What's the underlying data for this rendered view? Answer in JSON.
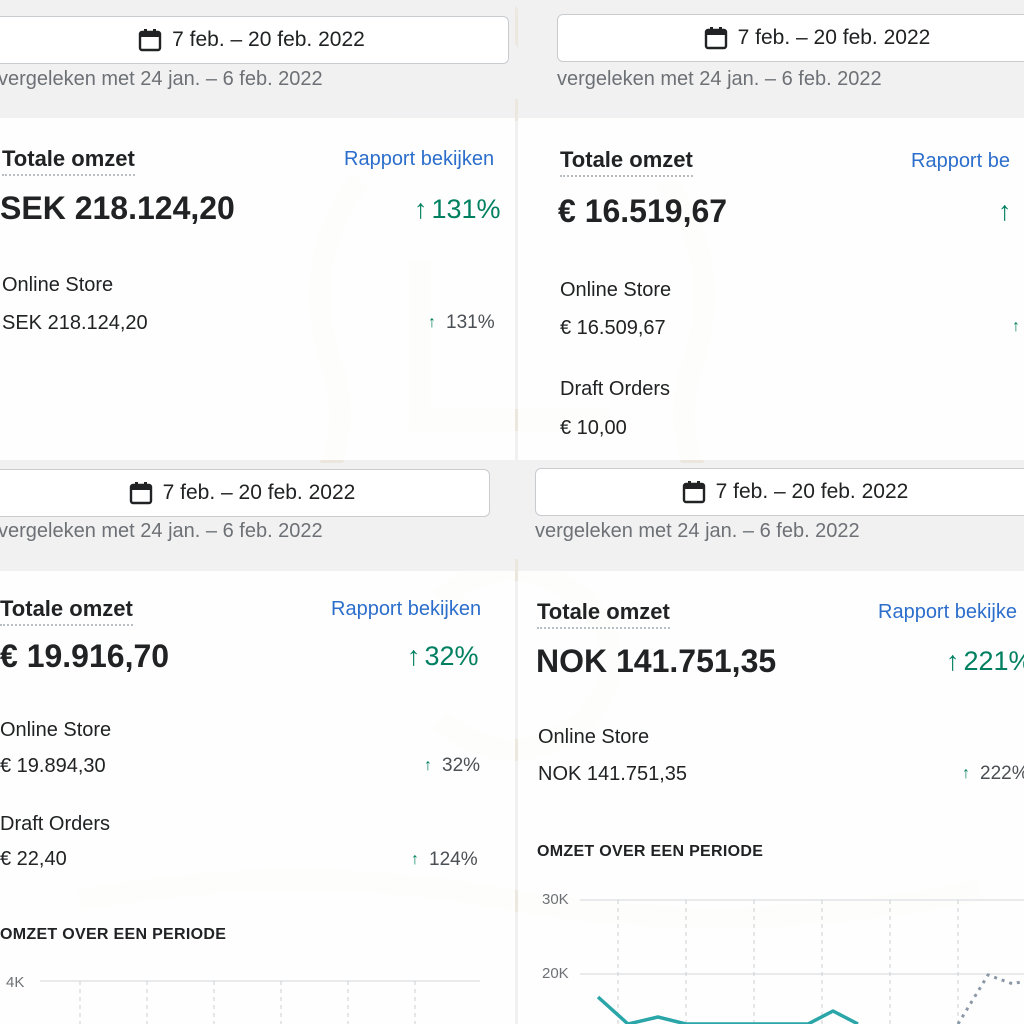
{
  "panels": [
    {
      "date_range": "7 feb. – 20 feb. 2022",
      "comparison": "vergeleken met 24 jan. – 6 feb. 2022",
      "title": "Totale omzet",
      "report_link": "Rapport bekijken",
      "total": "SEK 218.124,20",
      "total_change": "131%",
      "channels": [
        {
          "label": "Online Store",
          "value": "SEK 218.124,20",
          "change": "131%"
        }
      ]
    },
    {
      "date_range": "7 feb. – 20 feb. 2022",
      "comparison": "vergeleken met 24 jan. – 6 feb. 2022",
      "title": "Totale omzet",
      "report_link": "Rapport be",
      "total": "€ 16.519,67",
      "total_change": "",
      "channels": [
        {
          "label": "Online Store",
          "value": "€ 16.509,67",
          "change": ""
        },
        {
          "label": "Draft Orders",
          "value": "€ 10,00",
          "change": ""
        }
      ]
    },
    {
      "date_range": "7 feb. – 20 feb. 2022",
      "comparison": "vergeleken met 24 jan. – 6 feb. 2022",
      "title": "Totale omzet",
      "report_link": "Rapport bekijken",
      "total": "€ 19.916,70",
      "total_change": "32%",
      "channels": [
        {
          "label": "Online Store",
          "value": "€ 19.894,30",
          "change": "32%"
        },
        {
          "label": "Draft Orders",
          "value": "€ 22,40",
          "change": "124%"
        }
      ],
      "chart_section": "OMZET OVER EEN PERIODE",
      "y_ticks": [
        "4K"
      ]
    },
    {
      "date_range": "7 feb. – 20 feb. 2022",
      "comparison": "vergeleken met 24 jan. – 6 feb. 2022",
      "title": "Totale omzet",
      "report_link": "Rapport bekijke",
      "total": "NOK 141.751,35",
      "total_change": "221%",
      "channels": [
        {
          "label": "Online Store",
          "value": "NOK 141.751,35",
          "change": "222%"
        }
      ],
      "chart_section": "OMZET OVER EEN PERIODE",
      "y_ticks": [
        "30K",
        "20K"
      ]
    }
  ],
  "colors": {
    "positive": "#008060",
    "link": "#2c6ecb",
    "chart_line": "#2aa5a8"
  }
}
